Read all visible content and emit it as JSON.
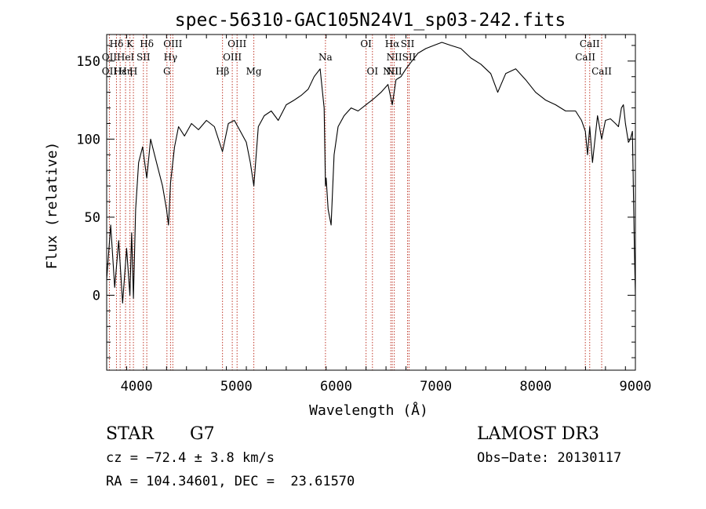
{
  "chart_data": {
    "type": "line",
    "title": "spec-56310-GAC105N24V1_sp03-242.fits",
    "xlabel": "Wavelength (Å)",
    "ylabel": "Flux (relative)",
    "xlim": [
      3700,
      9000
    ],
    "ylim": [
      -48,
      167
    ],
    "xticks": [
      4000,
      5000,
      6000,
      7000,
      8000,
      9000
    ],
    "yticks": [
      0,
      50,
      100,
      150
    ],
    "series": [
      {
        "x": [
          3700,
          3740,
          3780,
          3820,
          3860,
          3900,
          3933,
          3950,
          3968,
          3990,
          4020,
          4060,
          4102,
          4140,
          4180,
          4220,
          4260,
          4300,
          4320,
          4340,
          4380,
          4420,
          4480,
          4550,
          4620,
          4700,
          4780,
          4861,
          4920,
          4980,
          5040,
          5100,
          5140,
          5175,
          5220,
          5280,
          5350,
          5420,
          5500,
          5580,
          5650,
          5720,
          5780,
          5840,
          5880,
          5893,
          5900,
          5920,
          5950,
          5980,
          6020,
          6080,
          6150,
          6220,
          6300,
          6380,
          6450,
          6520,
          6563,
          6600,
          6650,
          6700,
          6760,
          6820,
          6900,
          6980,
          7060,
          7150,
          7250,
          7350,
          7450,
          7550,
          7620,
          7700,
          7800,
          7900,
          8000,
          8100,
          8200,
          8300,
          8400,
          8460,
          8498,
          8520,
          8542,
          8570,
          8620,
          8662,
          8700,
          8750,
          8800,
          8830,
          8860,
          8880,
          8900,
          8930,
          8950,
          8970,
          8990,
          9000
        ],
        "values": [
          10,
          45,
          5,
          35,
          -5,
          30,
          0,
          40,
          -2,
          55,
          85,
          95,
          75,
          100,
          90,
          80,
          70,
          55,
          45,
          72,
          95,
          108,
          102,
          110,
          106,
          112,
          108,
          92,
          110,
          112,
          105,
          98,
          85,
          70,
          108,
          115,
          118,
          112,
          122,
          125,
          128,
          132,
          140,
          145,
          120,
          70,
          75,
          55,
          45,
          90,
          108,
          115,
          120,
          118,
          122,
          126,
          130,
          135,
          122,
          138,
          140,
          145,
          150,
          155,
          158,
          160,
          162,
          160,
          158,
          152,
          148,
          142,
          130,
          142,
          145,
          138,
          130,
          125,
          122,
          118,
          118,
          112,
          105,
          90,
          108,
          85,
          115,
          100,
          112,
          113,
          110,
          108,
          120,
          122,
          110,
          98,
          100,
          105,
          30,
          0
        ]
      }
    ],
    "lines": [
      {
        "name": "Hδ",
        "x": 3798
      },
      {
        "name": "OII",
        "x": 3727
      },
      {
        "name": "Hε",
        "x": 3835
      },
      {
        "name": "HeI",
        "x": 3889
      },
      {
        "name": "K",
        "x": 3933
      },
      {
        "name": "H",
        "x": 3968
      },
      {
        "name": "Hη",
        "x": 3889
      },
      {
        "name": "SII",
        "x": 4068
      },
      {
        "name": "Hδ",
        "x": 4102
      },
      {
        "name": "OIII",
        "x": 4363
      },
      {
        "name": "Hγ",
        "x": 4340
      },
      {
        "name": "G",
        "x": 4304
      },
      {
        "name": "Hβ",
        "x": 4861
      },
      {
        "name": "OIII",
        "x": 4959
      },
      {
        "name": "OIII",
        "x": 5007
      },
      {
        "name": "Mg",
        "x": 5175
      },
      {
        "name": "Na",
        "x": 5893
      },
      {
        "name": "OI",
        "x": 6300
      },
      {
        "name": "OI",
        "x": 6364
      },
      {
        "name": "Hα",
        "x": 6563
      },
      {
        "name": "NII",
        "x": 6548
      },
      {
        "name": "NII",
        "x": 6583
      },
      {
        "name": "SII",
        "x": 6716
      },
      {
        "name": "SII",
        "x": 6731
      },
      {
        "name": "CaII",
        "x": 8498
      },
      {
        "name": "CaII",
        "x": 8542
      },
      {
        "name": "CaII",
        "x": 8662
      }
    ],
    "line_labels": [
      {
        "text": "Hδ",
        "x": 3798,
        "row": 0
      },
      {
        "text": "K",
        "x": 3933,
        "row": 0
      },
      {
        "text": "Hδ",
        "x": 4102,
        "row": 0
      },
      {
        "text": "OIII",
        "x": 4363,
        "row": 0
      },
      {
        "text": "OIII",
        "x": 5007,
        "row": 0
      },
      {
        "text": "OI",
        "x": 6300,
        "row": 0
      },
      {
        "text": "Hα",
        "x": 6563,
        "row": 0
      },
      {
        "text": "SII",
        "x": 6716,
        "row": 0
      },
      {
        "text": "CaII",
        "x": 8542,
        "row": 0
      },
      {
        "text": "OII",
        "x": 3727,
        "row": 1
      },
      {
        "text": "HeI",
        "x": 3889,
        "row": 1
      },
      {
        "text": "SII",
        "x": 4068,
        "row": 1
      },
      {
        "text": "Hγ",
        "x": 4340,
        "row": 1
      },
      {
        "text": "OIII",
        "x": 4959,
        "row": 1
      },
      {
        "text": "Na",
        "x": 5893,
        "row": 1
      },
      {
        "text": "NII",
        "x": 6583,
        "row": 1
      },
      {
        "text": "SII",
        "x": 6731,
        "row": 1
      },
      {
        "text": "CaII",
        "x": 8498,
        "row": 1
      },
      {
        "text": "OII",
        "x": 3727,
        "row": 2
      },
      {
        "text": "Hε",
        "x": 3835,
        "row": 2
      },
      {
        "text": "Hη",
        "x": 3889,
        "row": 2
      },
      {
        "text": "H",
        "x": 3968,
        "row": 2
      },
      {
        "text": "G",
        "x": 4304,
        "row": 2
      },
      {
        "text": "Hβ",
        "x": 4861,
        "row": 2
      },
      {
        "text": "Mg",
        "x": 5175,
        "row": 2
      },
      {
        "text": "OI",
        "x": 6364,
        "row": 2
      },
      {
        "text": "NII",
        "x": 6548,
        "row": 2
      },
      {
        "text": "NII",
        "x": 6583,
        "row": 2
      },
      {
        "text": "CaII",
        "x": 8662,
        "row": 2
      }
    ],
    "line_color": "#c0392b",
    "grid": false
  },
  "info": {
    "class_label": "STAR",
    "subclass": "G7",
    "survey": "LAMOST DR3",
    "redshift": "cz = −72.4 ± 3.8 km/s",
    "obs_date": "Obs−Date: 20130117",
    "coords": "RA = 104.34601, DEC =  23.61570"
  }
}
